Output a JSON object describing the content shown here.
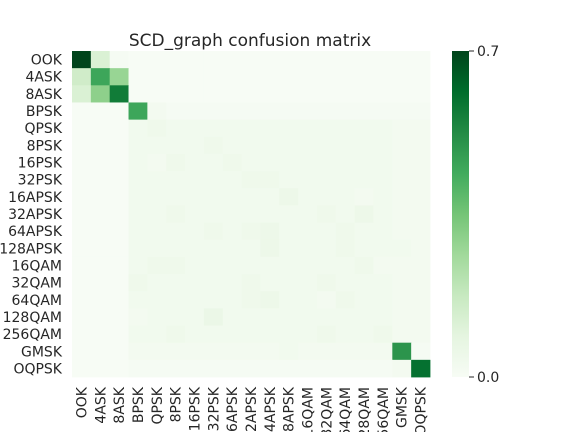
{
  "chart_data": {
    "type": "heatmap",
    "title": "SCD_graph confusion matrix",
    "xlabel": "",
    "ylabel": "",
    "labels": [
      "OOK",
      "4ASK",
      "8ASK",
      "BPSK",
      "QPSK",
      "8PSK",
      "16PSK",
      "32PSK",
      "16APSK",
      "32APSK",
      "64APSK",
      "128APSK",
      "16QAM",
      "32QAM",
      "64QAM",
      "128QAM",
      "256QAM",
      "GMSK",
      "OQPSK"
    ],
    "colorbar": {
      "min": 0.0,
      "max": 0.7,
      "ticks": [
        "0.0",
        "0.7"
      ],
      "colormap": "Greens"
    },
    "grid": false,
    "values": [
      [
        0.7,
        0.12,
        0.01,
        0.0,
        0.0,
        0.0,
        0.0,
        0.0,
        0.0,
        0.0,
        0.0,
        0.0,
        0.0,
        0.0,
        0.0,
        0.0,
        0.0,
        0.0,
        0.0
      ],
      [
        0.15,
        0.45,
        0.28,
        0.0,
        0.0,
        0.0,
        0.0,
        0.0,
        0.0,
        0.0,
        0.0,
        0.0,
        0.0,
        0.0,
        0.0,
        0.0,
        0.0,
        0.0,
        0.0
      ],
      [
        0.12,
        0.3,
        0.57,
        0.0,
        0.0,
        0.0,
        0.0,
        0.0,
        0.0,
        0.0,
        0.0,
        0.0,
        0.0,
        0.0,
        0.0,
        0.0,
        0.0,
        0.0,
        0.0
      ],
      [
        0.0,
        0.0,
        0.0,
        0.45,
        0.02,
        0.01,
        0.01,
        0.01,
        0.01,
        0.01,
        0.01,
        0.01,
        0.01,
        0.01,
        0.01,
        0.01,
        0.01,
        0.01,
        0.01
      ],
      [
        0.0,
        0.0,
        0.0,
        0.03,
        0.04,
        0.03,
        0.03,
        0.03,
        0.03,
        0.03,
        0.03,
        0.03,
        0.03,
        0.03,
        0.03,
        0.03,
        0.03,
        0.02,
        0.02
      ],
      [
        0.0,
        0.0,
        0.0,
        0.03,
        0.03,
        0.03,
        0.03,
        0.04,
        0.03,
        0.03,
        0.03,
        0.03,
        0.03,
        0.03,
        0.03,
        0.03,
        0.03,
        0.02,
        0.02
      ],
      [
        0.0,
        0.0,
        0.0,
        0.03,
        0.02,
        0.04,
        0.03,
        0.03,
        0.04,
        0.03,
        0.03,
        0.03,
        0.03,
        0.03,
        0.03,
        0.03,
        0.03,
        0.02,
        0.02
      ],
      [
        0.0,
        0.0,
        0.0,
        0.03,
        0.03,
        0.03,
        0.03,
        0.03,
        0.03,
        0.04,
        0.04,
        0.03,
        0.03,
        0.03,
        0.03,
        0.03,
        0.03,
        0.02,
        0.02
      ],
      [
        0.0,
        0.0,
        0.0,
        0.03,
        0.03,
        0.03,
        0.03,
        0.03,
        0.03,
        0.03,
        0.03,
        0.05,
        0.03,
        0.03,
        0.03,
        0.02,
        0.03,
        0.02,
        0.02
      ],
      [
        0.0,
        0.0,
        0.0,
        0.03,
        0.03,
        0.04,
        0.03,
        0.03,
        0.03,
        0.03,
        0.03,
        0.03,
        0.03,
        0.04,
        0.03,
        0.05,
        0.03,
        0.02,
        0.02
      ],
      [
        0.0,
        0.0,
        0.0,
        0.03,
        0.03,
        0.03,
        0.03,
        0.04,
        0.03,
        0.04,
        0.05,
        0.03,
        0.03,
        0.03,
        0.04,
        0.03,
        0.03,
        0.02,
        0.02
      ],
      [
        0.0,
        0.0,
        0.0,
        0.03,
        0.03,
        0.03,
        0.03,
        0.03,
        0.03,
        0.03,
        0.05,
        0.03,
        0.03,
        0.03,
        0.04,
        0.03,
        0.03,
        0.03,
        0.02
      ],
      [
        0.0,
        0.0,
        0.0,
        0.03,
        0.04,
        0.04,
        0.03,
        0.03,
        0.03,
        0.03,
        0.03,
        0.03,
        0.03,
        0.03,
        0.03,
        0.04,
        0.02,
        0.02,
        0.02
      ],
      [
        0.0,
        0.0,
        0.0,
        0.04,
        0.03,
        0.03,
        0.03,
        0.03,
        0.03,
        0.04,
        0.03,
        0.03,
        0.03,
        0.04,
        0.03,
        0.03,
        0.03,
        0.02,
        0.02
      ],
      [
        0.0,
        0.0,
        0.0,
        0.03,
        0.03,
        0.03,
        0.03,
        0.03,
        0.03,
        0.04,
        0.05,
        0.03,
        0.03,
        0.02,
        0.04,
        0.03,
        0.03,
        0.02,
        0.02
      ],
      [
        0.0,
        0.0,
        0.0,
        0.02,
        0.03,
        0.03,
        0.03,
        0.06,
        0.03,
        0.03,
        0.03,
        0.03,
        0.03,
        0.03,
        0.03,
        0.03,
        0.03,
        0.02,
        0.02
      ],
      [
        0.0,
        0.0,
        0.0,
        0.03,
        0.03,
        0.04,
        0.03,
        0.03,
        0.03,
        0.03,
        0.03,
        0.03,
        0.03,
        0.04,
        0.03,
        0.03,
        0.04,
        0.02,
        0.02
      ],
      [
        0.0,
        0.0,
        0.0,
        0.02,
        0.02,
        0.02,
        0.02,
        0.02,
        0.02,
        0.02,
        0.02,
        0.03,
        0.02,
        0.02,
        0.02,
        0.02,
        0.02,
        0.5,
        0.01
      ],
      [
        0.0,
        0.0,
        0.0,
        0.01,
        0.01,
        0.01,
        0.01,
        0.01,
        0.01,
        0.01,
        0.01,
        0.01,
        0.01,
        0.01,
        0.01,
        0.01,
        0.01,
        0.02,
        0.6
      ]
    ]
  }
}
